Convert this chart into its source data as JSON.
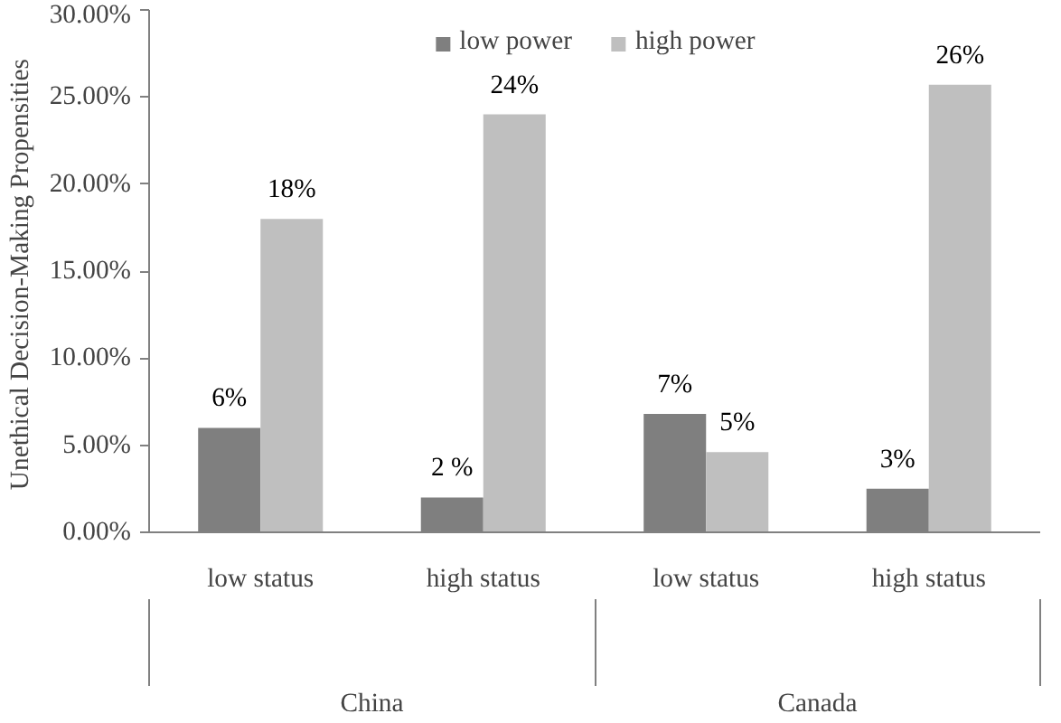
{
  "chart_data": {
    "type": "bar",
    "ylabel": "Unethical Decision-Making  Propensities",
    "categories": [
      "low status",
      "high status",
      "low status",
      "high status"
    ],
    "series": [
      {
        "name": "low power",
        "color": "#7f7f7f",
        "values": [
          6.0,
          2.0,
          6.8,
          2.5
        ],
        "value_labels": [
          "6%",
          "2 %",
          "7%",
          "3%"
        ]
      },
      {
        "name": "high power",
        "color": "#bfbfbf",
        "values": [
          18.0,
          24.0,
          4.6,
          25.7
        ],
        "value_labels": [
          "18%",
          "24%",
          "5%",
          "26%"
        ]
      }
    ],
    "ylim": [
      0,
      30
    ],
    "yticks": [
      {
        "value": 0,
        "label": "0.00%"
      },
      {
        "value": 5,
        "label": "5.00%"
      },
      {
        "value": 10,
        "label": "10.00%"
      },
      {
        "value": 15,
        "label": "15.00%"
      },
      {
        "value": 20,
        "label": "20.00%"
      },
      {
        "value": 25,
        "label": "25.00%"
      },
      {
        "value": 30,
        "label": "30.00%"
      }
    ],
    "annotations": [
      "China",
      "Canada"
    ],
    "legend": "top",
    "grid": false
  }
}
